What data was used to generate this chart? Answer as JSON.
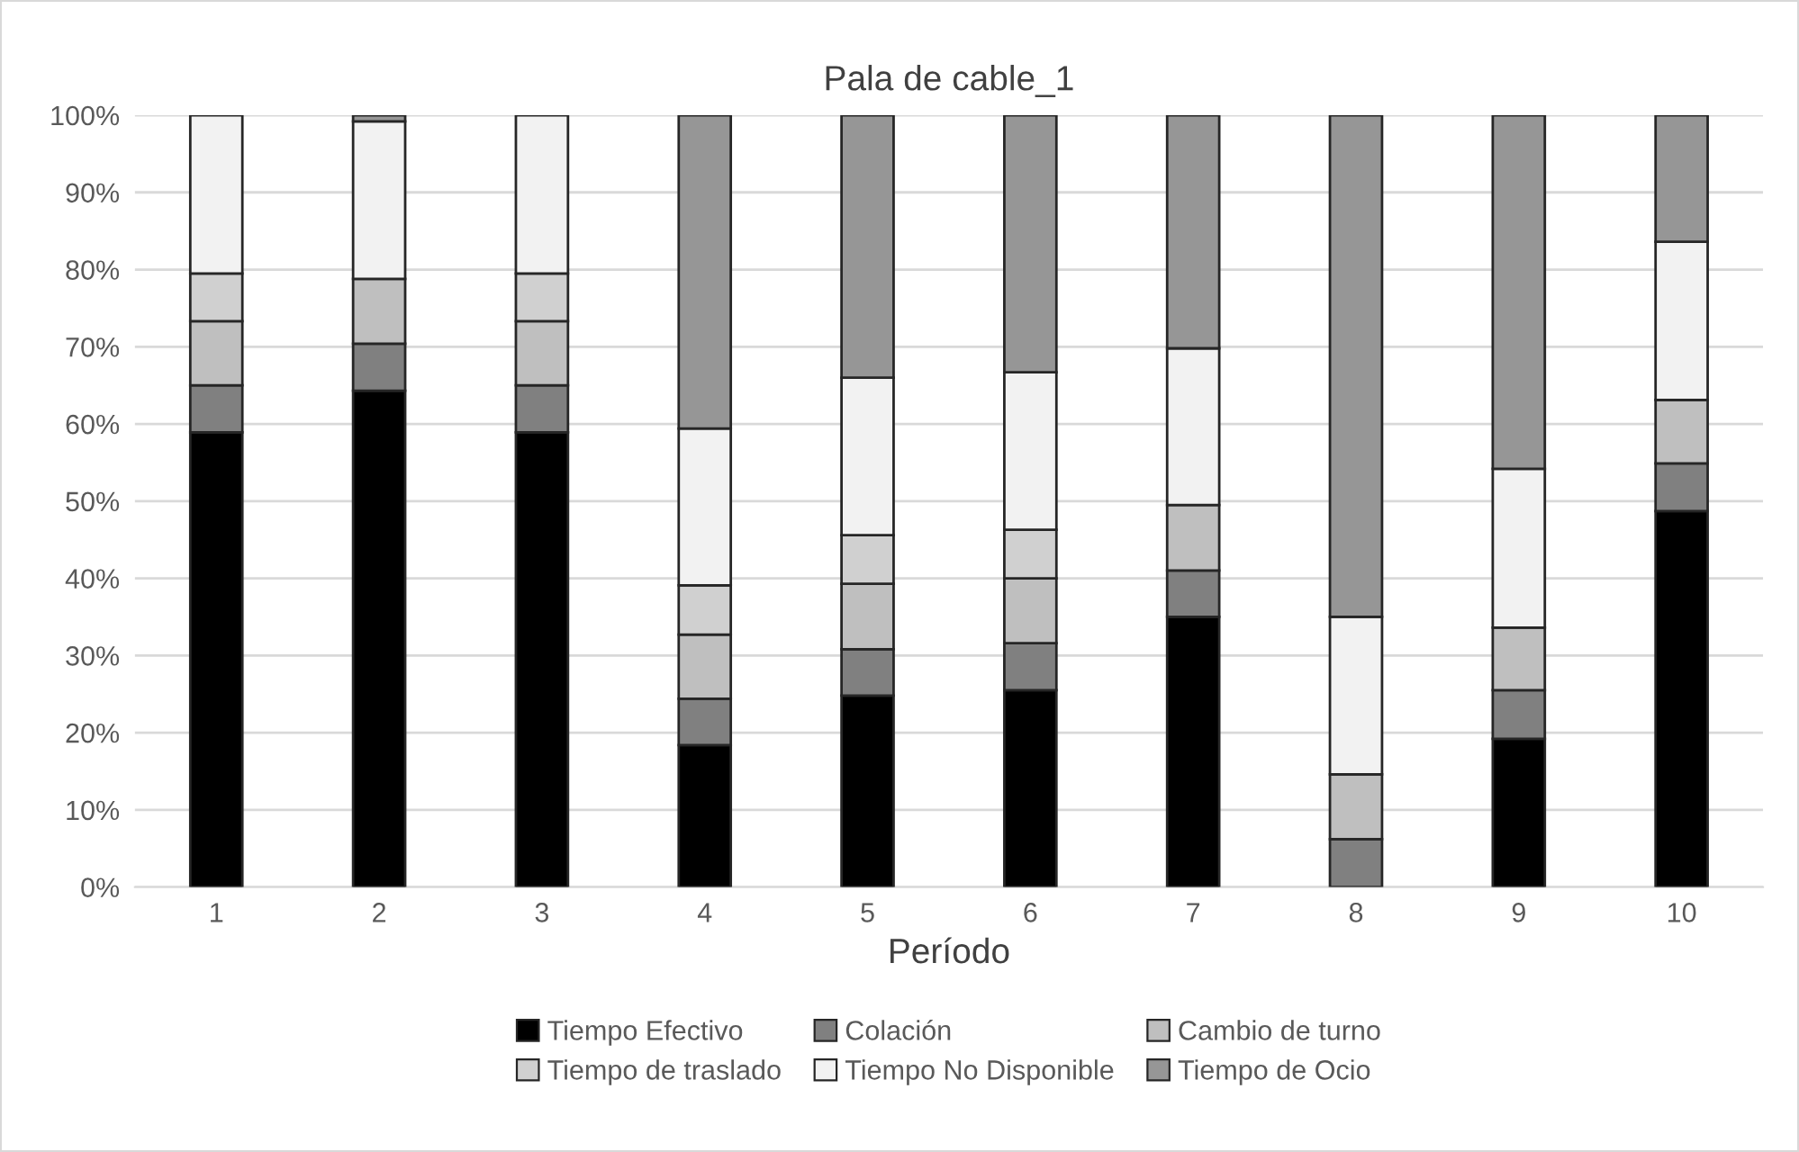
{
  "chart_data": {
    "type": "bar",
    "stacked": true,
    "title": "Pala de cable_1",
    "xlabel": "Período",
    "categories": [
      "1",
      "2",
      "3",
      "4",
      "5",
      "6",
      "7",
      "8",
      "9",
      "10"
    ],
    "series": [
      {
        "name": "Tiempo Efectivo",
        "color": "#000000",
        "values": [
          58.9,
          64.3,
          58.9,
          18.4,
          24.8,
          25.5,
          35.0,
          null,
          19.2,
          48.7
        ]
      },
      {
        "name": "Colación",
        "color": "#808080",
        "values": [
          6.1,
          6.1,
          6.1,
          6.0,
          6.0,
          6.1,
          6.0,
          6.2,
          6.3,
          6.2
        ]
      },
      {
        "name": "Cambio de turno",
        "color": "#bfbfbf",
        "values": [
          8.3,
          8.4,
          8.3,
          8.3,
          8.5,
          8.4,
          8.5,
          8.4,
          8.1,
          8.2
        ]
      },
      {
        "name": "Tiempo de traslado",
        "color": "#d0d0d0",
        "values": [
          6.2,
          null,
          6.2,
          6.4,
          6.3,
          6.3,
          null,
          null,
          null,
          null
        ]
      },
      {
        "name": "Tiempo No Disponible",
        "color": "#f2f2f2",
        "values": [
          20.5,
          20.4,
          20.5,
          20.3,
          20.4,
          20.4,
          20.3,
          20.4,
          20.6,
          20.5
        ]
      },
      {
        "name": "Tiempo de Ocio",
        "color": "#969696",
        "values": [
          null,
          0.8,
          null,
          40.6,
          34.0,
          33.3,
          30.2,
          65.0,
          45.8,
          16.4
        ]
      }
    ],
    "ylim": [
      0,
      100
    ],
    "yticks": [
      {
        "value": 0,
        "label": "0%"
      },
      {
        "value": 10,
        "label": "10%"
      },
      {
        "value": 20,
        "label": "20%"
      },
      {
        "value": 30,
        "label": "30%"
      },
      {
        "value": 40,
        "label": "40%"
      },
      {
        "value": 50,
        "label": "50%"
      },
      {
        "value": 60,
        "label": "60%"
      },
      {
        "value": 70,
        "label": "70%"
      },
      {
        "value": 80,
        "label": "80%"
      },
      {
        "value": 90,
        "label": "90%"
      },
      {
        "value": 100,
        "label": "100%"
      }
    ],
    "grid": "y",
    "legend": "bottom"
  }
}
